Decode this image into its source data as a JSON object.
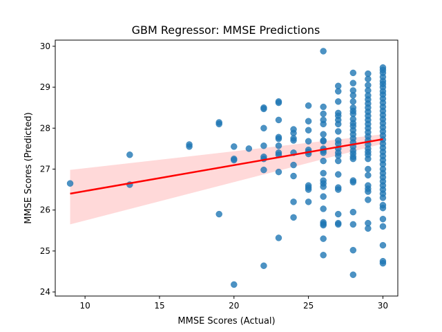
{
  "chart_data": {
    "type": "scatter",
    "title": "GBM Regressor: MMSE Predictions",
    "xlabel": "MMSE Scores (Actual)",
    "ylabel": "MMSE Scores (Predicted)",
    "xlim": [
      8,
      31
    ],
    "ylim": [
      23.9,
      30.15
    ],
    "xticks": [
      10,
      15,
      20,
      25,
      30
    ],
    "yticks": [
      24,
      25,
      26,
      27,
      28,
      29,
      30
    ],
    "grid": false,
    "colors": {
      "points": "#1f77b4",
      "regression": "#ff0000"
    },
    "regression": {
      "x": [
        9,
        30
      ],
      "y": [
        26.4,
        27.73
      ],
      "ci_lower": [
        25.65,
        27.62
      ],
      "ci_upper": [
        26.98,
        27.85
      ]
    },
    "points": [
      [
        9,
        26.65
      ],
      [
        13,
        27.35
      ],
      [
        13,
        26.62
      ],
      [
        17,
        27.6
      ],
      [
        17,
        27.55
      ],
      [
        19,
        28.14
      ],
      [
        19,
        28.1
      ],
      [
        19,
        25.9
      ],
      [
        20,
        27.55
      ],
      [
        20,
        27.25
      ],
      [
        20,
        27.22
      ],
      [
        20,
        24.18
      ],
      [
        21,
        27.5
      ],
      [
        22,
        28.5
      ],
      [
        22,
        28.47
      ],
      [
        22,
        28.0
      ],
      [
        22,
        27.57
      ],
      [
        22,
        27.3
      ],
      [
        22,
        27.25
      ],
      [
        22,
        26.98
      ],
      [
        22,
        24.64
      ],
      [
        23,
        28.65
      ],
      [
        23,
        28.62
      ],
      [
        23,
        28.2
      ],
      [
        23,
        27.78
      ],
      [
        23,
        27.74
      ],
      [
        23,
        27.57
      ],
      [
        23,
        27.4
      ],
      [
        23,
        27.35
      ],
      [
        23,
        26.93
      ],
      [
        23,
        25.32
      ],
      [
        24,
        27.97
      ],
      [
        24,
        27.88
      ],
      [
        24,
        27.75
      ],
      [
        24,
        27.7
      ],
      [
        24,
        27.4
      ],
      [
        24,
        27.1
      ],
      [
        24,
        26.83
      ],
      [
        24,
        26.2
      ],
      [
        24,
        25.82
      ],
      [
        25,
        28.55
      ],
      [
        25,
        28.17
      ],
      [
        25,
        27.95
      ],
      [
        25,
        27.68
      ],
      [
        25,
        27.47
      ],
      [
        25,
        27.42
      ],
      [
        25,
        27.37
      ],
      [
        25,
        26.6
      ],
      [
        25,
        26.55
      ],
      [
        25,
        26.5
      ],
      [
        25,
        26.2
      ],
      [
        26,
        29.88
      ],
      [
        26,
        28.52
      ],
      [
        26,
        28.35
      ],
      [
        26,
        28.2
      ],
      [
        26,
        28.1
      ],
      [
        26,
        27.85
      ],
      [
        26,
        27.7
      ],
      [
        26,
        27.68
      ],
      [
        26,
        27.5
      ],
      [
        26,
        27.45
      ],
      [
        26,
        27.4
      ],
      [
        26,
        27.2
      ],
      [
        26,
        26.9
      ],
      [
        26,
        26.72
      ],
      [
        26,
        26.65
      ],
      [
        26,
        26.57
      ],
      [
        26,
        26.33
      ],
      [
        26,
        26.03
      ],
      [
        26,
        25.7
      ],
      [
        26,
        25.66
      ],
      [
        26,
        25.63
      ],
      [
        26,
        25.3
      ],
      [
        26,
        24.9
      ],
      [
        27,
        29.03
      ],
      [
        27,
        28.9
      ],
      [
        27,
        28.65
      ],
      [
        27,
        28.37
      ],
      [
        27,
        28.3
      ],
      [
        27,
        28.2
      ],
      [
        27,
        28.1
      ],
      [
        27,
        27.92
      ],
      [
        27,
        27.7
      ],
      [
        27,
        27.62
      ],
      [
        27,
        27.5
      ],
      [
        27,
        27.4
      ],
      [
        27,
        27.33
      ],
      [
        27,
        27.2
      ],
      [
        27,
        26.87
      ],
      [
        27,
        26.55
      ],
      [
        27,
        26.5
      ],
      [
        27,
        25.9
      ],
      [
        27,
        25.68
      ],
      [
        27,
        25.65
      ],
      [
        28,
        29.35
      ],
      [
        28,
        29.1
      ],
      [
        28,
        28.92
      ],
      [
        28,
        28.8
      ],
      [
        28,
        28.65
      ],
      [
        28,
        28.5
      ],
      [
        28,
        28.42
      ],
      [
        28,
        28.35
      ],
      [
        28,
        28.22
      ],
      [
        28,
        28.12
      ],
      [
        28,
        28.05
      ],
      [
        28,
        27.95
      ],
      [
        28,
        27.85
      ],
      [
        28,
        27.75
      ],
      [
        28,
        27.65
      ],
      [
        28,
        27.55
      ],
      [
        28,
        27.45
      ],
      [
        28,
        27.38
      ],
      [
        28,
        27.3
      ],
      [
        28,
        27.25
      ],
      [
        28,
        26.72
      ],
      [
        28,
        26.68
      ],
      [
        28,
        25.95
      ],
      [
        28,
        25.65
      ],
      [
        28,
        25.02
      ],
      [
        28,
        24.42
      ],
      [
        29,
        29.33
      ],
      [
        29,
        29.2
      ],
      [
        29,
        29.05
      ],
      [
        29,
        28.92
      ],
      [
        29,
        28.8
      ],
      [
        29,
        28.7
      ],
      [
        29,
        28.6
      ],
      [
        29,
        28.5
      ],
      [
        29,
        28.4
      ],
      [
        29,
        28.3
      ],
      [
        29,
        28.2
      ],
      [
        29,
        28.1
      ],
      [
        29,
        28.0
      ],
      [
        29,
        27.9
      ],
      [
        29,
        27.8
      ],
      [
        29,
        27.7
      ],
      [
        29,
        27.6
      ],
      [
        29,
        27.5
      ],
      [
        29,
        27.42
      ],
      [
        29,
        27.35
      ],
      [
        29,
        27.25
      ],
      [
        29,
        27.0
      ],
      [
        29,
        26.85
      ],
      [
        29,
        26.6
      ],
      [
        29,
        26.52
      ],
      [
        29,
        26.45
      ],
      [
        29,
        26.25
      ],
      [
        29,
        25.68
      ],
      [
        29,
        25.55
      ],
      [
        30,
        29.48
      ],
      [
        30,
        29.42
      ],
      [
        30,
        29.35
      ],
      [
        30,
        29.25
      ],
      [
        30,
        29.15
      ],
      [
        30,
        29.08
      ],
      [
        30,
        29.0
      ],
      [
        30,
        28.9
      ],
      [
        30,
        28.82
      ],
      [
        30,
        28.72
      ],
      [
        30,
        28.62
      ],
      [
        30,
        28.52
      ],
      [
        30,
        28.42
      ],
      [
        30,
        28.32
      ],
      [
        30,
        28.22
      ],
      [
        30,
        28.12
      ],
      [
        30,
        28.02
      ],
      [
        30,
        27.92
      ],
      [
        30,
        27.82
      ],
      [
        30,
        27.72
      ],
      [
        30,
        27.62
      ],
      [
        30,
        27.52
      ],
      [
        30,
        27.42
      ],
      [
        30,
        27.32
      ],
      [
        30,
        27.22
      ],
      [
        30,
        27.12
      ],
      [
        30,
        27.0
      ],
      [
        30,
        26.9
      ],
      [
        30,
        26.8
      ],
      [
        30,
        26.7
      ],
      [
        30,
        26.6
      ],
      [
        30,
        26.5
      ],
      [
        30,
        26.4
      ],
      [
        30,
        26.3
      ],
      [
        30,
        26.12
      ],
      [
        30,
        26.05
      ],
      [
        30,
        25.78
      ],
      [
        30,
        25.6
      ],
      [
        30,
        25.14
      ],
      [
        30,
        24.75
      ],
      [
        30,
        24.7
      ]
    ]
  }
}
